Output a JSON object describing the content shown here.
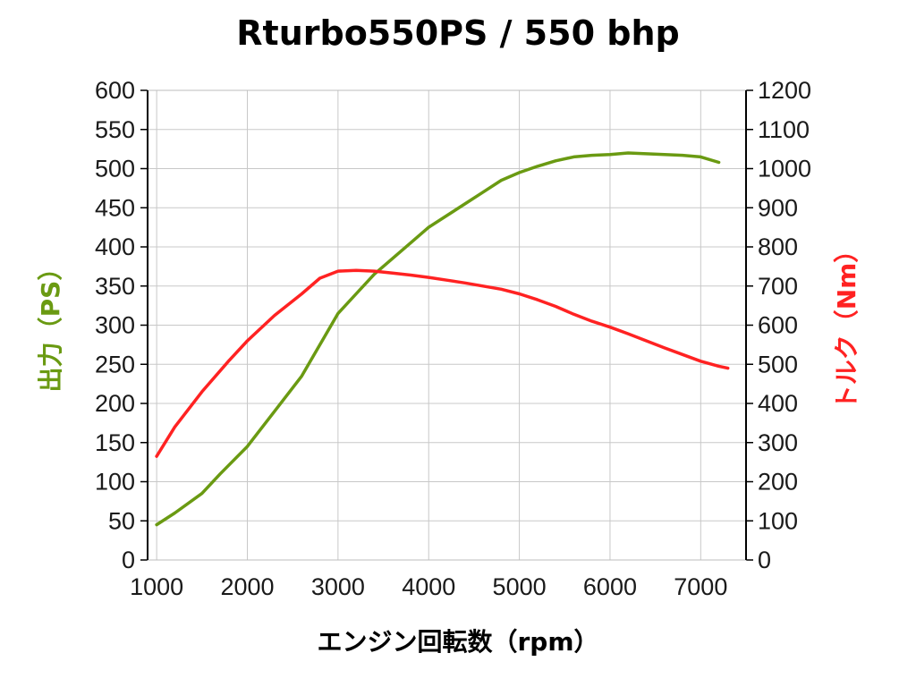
{
  "chart_data": {
    "type": "line",
    "title": "Rturbo550PS / 550 bhp",
    "xlabel": "エンジン回転数（rpm）",
    "ylabel_left": "出力（PS）",
    "ylabel_right": "トルク（Nm）",
    "xlim": [
      900,
      7500
    ],
    "ylim_left": [
      0,
      600
    ],
    "ylim_right": [
      0,
      1200
    ],
    "x_ticks": [
      1000,
      2000,
      3000,
      4000,
      5000,
      6000,
      7000
    ],
    "y_left_ticks": [
      0,
      50,
      100,
      150,
      200,
      250,
      300,
      350,
      400,
      450,
      500,
      550,
      600
    ],
    "y_right_ticks": [
      0,
      100,
      200,
      300,
      400,
      500,
      600,
      700,
      800,
      900,
      1000,
      1100,
      1200
    ],
    "grid": true,
    "legend": "none",
    "series": [
      {
        "axis": "left",
        "color": "#6a9a12",
        "x": [
          1000,
          1200,
          1500,
          1700,
          2000,
          2300,
          2600,
          2800,
          3000,
          3200,
          3400,
          3600,
          3800,
          4000,
          4200,
          4400,
          4600,
          4800,
          5000,
          5200,
          5400,
          5600,
          5800,
          6000,
          6200,
          6400,
          6600,
          6800,
          7000,
          7200
        ],
        "values": [
          45,
          60,
          85,
          110,
          145,
          190,
          235,
          275,
          315,
          340,
          365,
          385,
          405,
          425,
          440,
          455,
          470,
          485,
          495,
          503,
          510,
          515,
          517,
          518,
          520,
          519,
          518,
          517,
          515,
          508
        ]
      },
      {
        "axis": "right",
        "color": "#ff2222",
        "x": [
          1000,
          1200,
          1500,
          1800,
          2000,
          2300,
          2600,
          2800,
          3000,
          3200,
          3400,
          3600,
          3800,
          4000,
          4200,
          4400,
          4600,
          4800,
          5000,
          5200,
          5400,
          5600,
          5800,
          6000,
          6200,
          6400,
          6600,
          6800,
          7000,
          7200,
          7300
        ],
        "values": [
          265,
          340,
          430,
          510,
          560,
          625,
          680,
          720,
          738,
          740,
          738,
          733,
          728,
          722,
          715,
          708,
          700,
          692,
          680,
          665,
          648,
          628,
          610,
          595,
          578,
          560,
          542,
          525,
          508,
          495,
          490
        ]
      }
    ]
  }
}
